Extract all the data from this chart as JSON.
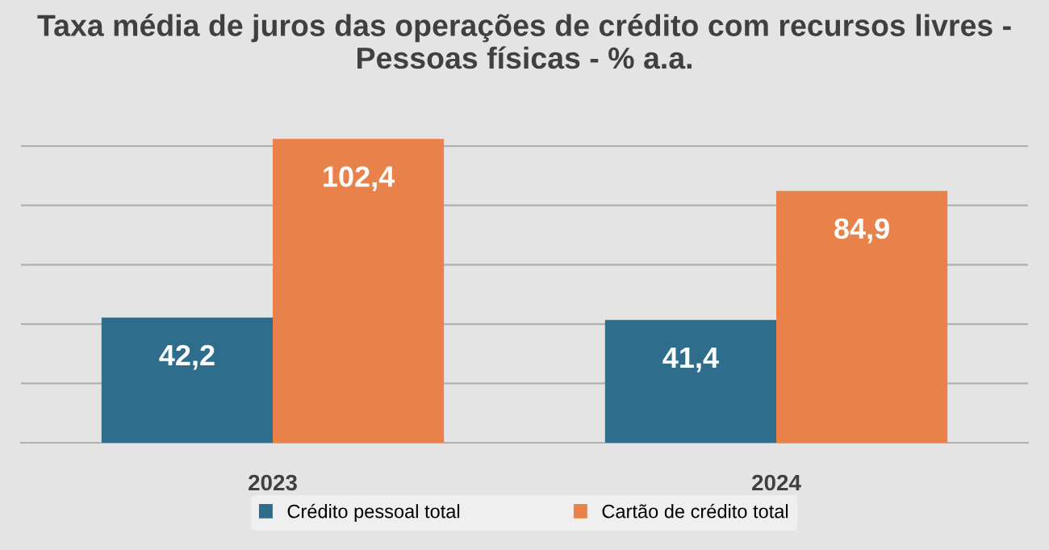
{
  "chart_data": {
    "type": "bar",
    "title": "Taxa média de juros das operações de crédito com recursos livres - Pessoas físicas - % a.a.",
    "categories": [
      "2023",
      "2024"
    ],
    "series": [
      {
        "name": "Crédito pessoal total",
        "color": "#2e6d8c",
        "values": [
          42.2,
          41.4
        ],
        "value_labels": [
          "42,2",
          "41,4"
        ]
      },
      {
        "name": "Cartão de crédito total",
        "color": "#e8824a",
        "values": [
          102.4,
          84.9
        ],
        "value_labels": [
          "102,4",
          "84,9"
        ]
      }
    ],
    "grid": "y",
    "legend": "bottom",
    "tick_labels": "x"
  }
}
